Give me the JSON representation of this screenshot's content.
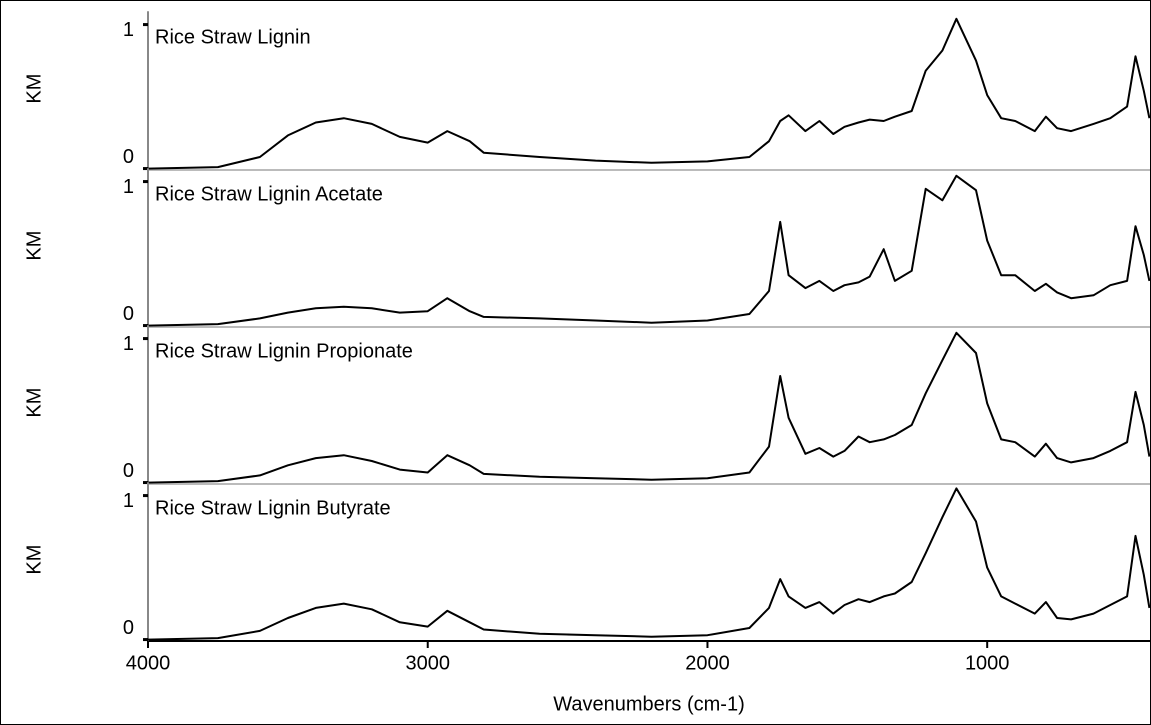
{
  "chart_data": [
    {
      "type": "line",
      "title": "Rice Straw Lignin",
      "ylabel": "KM",
      "ylim": [
        -0.01,
        1.12
      ],
      "yticks": [
        0,
        1
      ],
      "xlim": [
        4000,
        418
      ],
      "color": "#000000",
      "x": [
        4000,
        3750,
        3600,
        3500,
        3400,
        3300,
        3200,
        3100,
        3000,
        2930,
        2850,
        2800,
        2600,
        2400,
        2200,
        2000,
        1850,
        1780,
        1740,
        1710,
        1650,
        1600,
        1550,
        1510,
        1460,
        1420,
        1370,
        1330,
        1270,
        1220,
        1160,
        1110,
        1040,
        1000,
        950,
        900,
        830,
        790,
        750,
        700,
        620,
        560,
        500,
        470,
        440,
        420
      ],
      "values": [
        0,
        0.01,
        0.08,
        0.23,
        0.32,
        0.35,
        0.31,
        0.22,
        0.18,
        0.26,
        0.19,
        0.11,
        0.08,
        0.055,
        0.04,
        0.05,
        0.08,
        0.19,
        0.33,
        0.37,
        0.26,
        0.33,
        0.24,
        0.29,
        0.32,
        0.34,
        0.33,
        0.36,
        0.4,
        0.68,
        0.82,
        1.04,
        0.75,
        0.51,
        0.35,
        0.33,
        0.26,
        0.36,
        0.28,
        0.26,
        0.31,
        0.35,
        0.43,
        0.78,
        0.54,
        0.35
      ]
    },
    {
      "type": "line",
      "title": "Rice Straw Lignin Acetate",
      "ylabel": "KM",
      "ylim": [
        -0.01,
        1.12
      ],
      "yticks": [
        0,
        1
      ],
      "xlim": [
        4000,
        418
      ],
      "color": "#000000",
      "x": [
        4000,
        3750,
        3600,
        3500,
        3400,
        3300,
        3200,
        3100,
        3000,
        2930,
        2850,
        2800,
        2600,
        2400,
        2200,
        2000,
        1850,
        1780,
        1740,
        1710,
        1650,
        1600,
        1550,
        1510,
        1460,
        1420,
        1370,
        1330,
        1270,
        1220,
        1160,
        1110,
        1040,
        1000,
        950,
        900,
        830,
        790,
        750,
        700,
        620,
        560,
        500,
        470,
        440,
        420
      ],
      "values": [
        0,
        0.01,
        0.05,
        0.09,
        0.12,
        0.13,
        0.12,
        0.09,
        0.1,
        0.19,
        0.1,
        0.06,
        0.05,
        0.035,
        0.02,
        0.035,
        0.08,
        0.24,
        0.72,
        0.35,
        0.26,
        0.31,
        0.24,
        0.28,
        0.3,
        0.34,
        0.53,
        0.31,
        0.38,
        0.95,
        0.87,
        1.04,
        0.94,
        0.59,
        0.35,
        0.35,
        0.24,
        0.29,
        0.23,
        0.19,
        0.21,
        0.28,
        0.31,
        0.69,
        0.49,
        0.31
      ]
    },
    {
      "type": "line",
      "title": "Rice Straw Lignin Propionate",
      "ylabel": "KM",
      "ylim": [
        -0.01,
        1.12
      ],
      "yticks": [
        0,
        1
      ],
      "xlim": [
        4000,
        418
      ],
      "color": "#000000",
      "x": [
        4000,
        3750,
        3600,
        3500,
        3400,
        3300,
        3200,
        3100,
        3000,
        2930,
        2850,
        2800,
        2600,
        2400,
        2200,
        2000,
        1850,
        1780,
        1740,
        1710,
        1650,
        1600,
        1550,
        1510,
        1460,
        1420,
        1370,
        1330,
        1270,
        1220,
        1160,
        1110,
        1040,
        1000,
        950,
        900,
        830,
        790,
        750,
        700,
        620,
        560,
        500,
        470,
        440,
        420
      ],
      "values": [
        0,
        0.01,
        0.05,
        0.12,
        0.17,
        0.19,
        0.15,
        0.09,
        0.07,
        0.19,
        0.12,
        0.06,
        0.04,
        0.03,
        0.02,
        0.03,
        0.07,
        0.25,
        0.74,
        0.45,
        0.2,
        0.24,
        0.18,
        0.22,
        0.32,
        0.28,
        0.3,
        0.33,
        0.4,
        0.62,
        0.85,
        1.04,
        0.9,
        0.55,
        0.3,
        0.28,
        0.18,
        0.27,
        0.17,
        0.14,
        0.17,
        0.22,
        0.28,
        0.63,
        0.4,
        0.18
      ]
    },
    {
      "type": "line",
      "title": "Rice Straw Lignin Butyrate",
      "ylabel": "KM",
      "ylim": [
        -0.01,
        1.12
      ],
      "yticks": [
        0,
        1
      ],
      "xlim": [
        4000,
        418
      ],
      "color": "#000000",
      "xlabel": "Wavenumbers (cm-1)",
      "xticks": [
        4000,
        3000,
        2000,
        1000
      ],
      "x": [
        4000,
        3750,
        3600,
        3500,
        3400,
        3300,
        3200,
        3100,
        3000,
        2930,
        2850,
        2800,
        2600,
        2400,
        2200,
        2000,
        1850,
        1780,
        1740,
        1710,
        1650,
        1600,
        1550,
        1510,
        1460,
        1420,
        1370,
        1330,
        1270,
        1220,
        1160,
        1110,
        1040,
        1000,
        950,
        900,
        830,
        790,
        750,
        700,
        620,
        560,
        500,
        470,
        440,
        420
      ],
      "values": [
        0,
        0.01,
        0.06,
        0.15,
        0.22,
        0.25,
        0.21,
        0.12,
        0.09,
        0.2,
        0.12,
        0.07,
        0.04,
        0.03,
        0.02,
        0.03,
        0.08,
        0.22,
        0.42,
        0.3,
        0.22,
        0.26,
        0.18,
        0.24,
        0.28,
        0.26,
        0.3,
        0.32,
        0.4,
        0.6,
        0.85,
        1.05,
        0.82,
        0.5,
        0.3,
        0.25,
        0.18,
        0.26,
        0.15,
        0.14,
        0.18,
        0.24,
        0.3,
        0.72,
        0.45,
        0.22
      ]
    }
  ]
}
